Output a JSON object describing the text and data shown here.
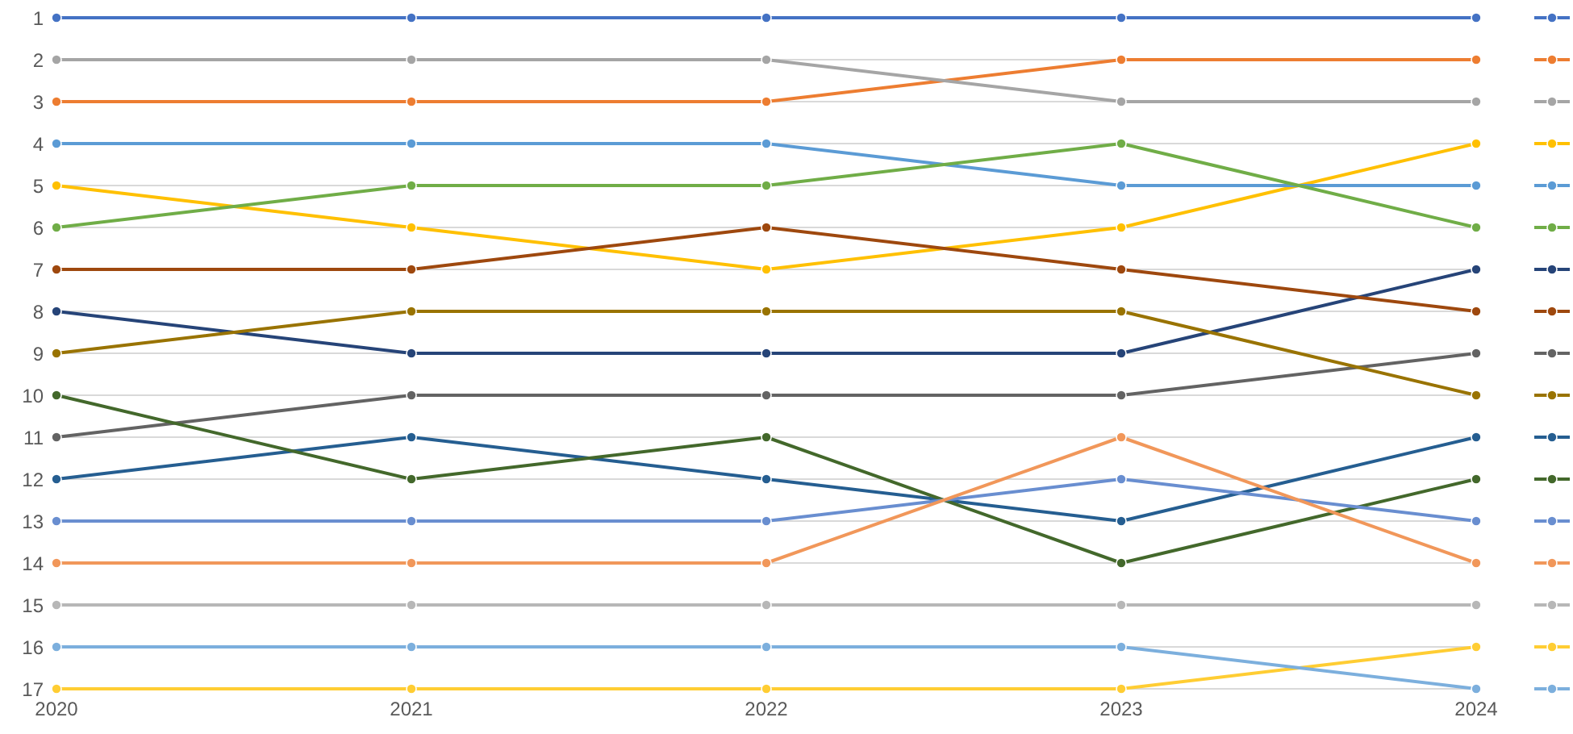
{
  "chart_data": {
    "type": "line",
    "categories": [
      "2020",
      "2021",
      "2022",
      "2023",
      "2024"
    ],
    "ylim": [
      17,
      1
    ],
    "yticks": [
      1,
      2,
      3,
      4,
      5,
      6,
      7,
      8,
      9,
      10,
      11,
      12,
      13,
      14,
      15,
      16,
      17
    ],
    "grid": "y",
    "marker": "circle",
    "line_style": "solid",
    "series": [
      {
        "color": "#4472c4",
        "values": [
          1,
          1,
          1,
          1,
          1
        ]
      },
      {
        "color": "#ed7d31",
        "values": [
          3,
          3,
          3,
          2,
          2
        ]
      },
      {
        "color": "#a5a5a5",
        "values": [
          2,
          2,
          2,
          3,
          3
        ]
      },
      {
        "color": "#ffc000",
        "values": [
          5,
          6,
          7,
          6,
          4
        ]
      },
      {
        "color": "#5b9bd5",
        "values": [
          4,
          4,
          4,
          5,
          5
        ]
      },
      {
        "color": "#70ad47",
        "values": [
          6,
          5,
          5,
          4,
          6
        ]
      },
      {
        "color": "#264478",
        "values": [
          8,
          9,
          9,
          9,
          7
        ]
      },
      {
        "color": "#9e480e",
        "values": [
          7,
          7,
          6,
          7,
          8
        ]
      },
      {
        "color": "#636363",
        "values": [
          11,
          10,
          10,
          10,
          9
        ]
      },
      {
        "color": "#997300",
        "values": [
          9,
          8,
          8,
          8,
          10
        ]
      },
      {
        "color": "#255e91",
        "values": [
          12,
          11,
          12,
          13,
          11
        ]
      },
      {
        "color": "#43682b",
        "values": [
          10,
          12,
          11,
          14,
          12
        ]
      },
      {
        "color": "#698ed0",
        "values": [
          13,
          13,
          13,
          12,
          13
        ]
      },
      {
        "color": "#f1975a",
        "values": [
          14,
          14,
          14,
          11,
          14
        ]
      },
      {
        "color": "#b7b7b7",
        "values": [
          15,
          15,
          15,
          15,
          15
        ]
      },
      {
        "color": "#ffcd33",
        "values": [
          17,
          17,
          17,
          17,
          16
        ]
      },
      {
        "color": "#7cafdd",
        "values": [
          16,
          16,
          16,
          16,
          17
        ]
      }
    ]
  }
}
